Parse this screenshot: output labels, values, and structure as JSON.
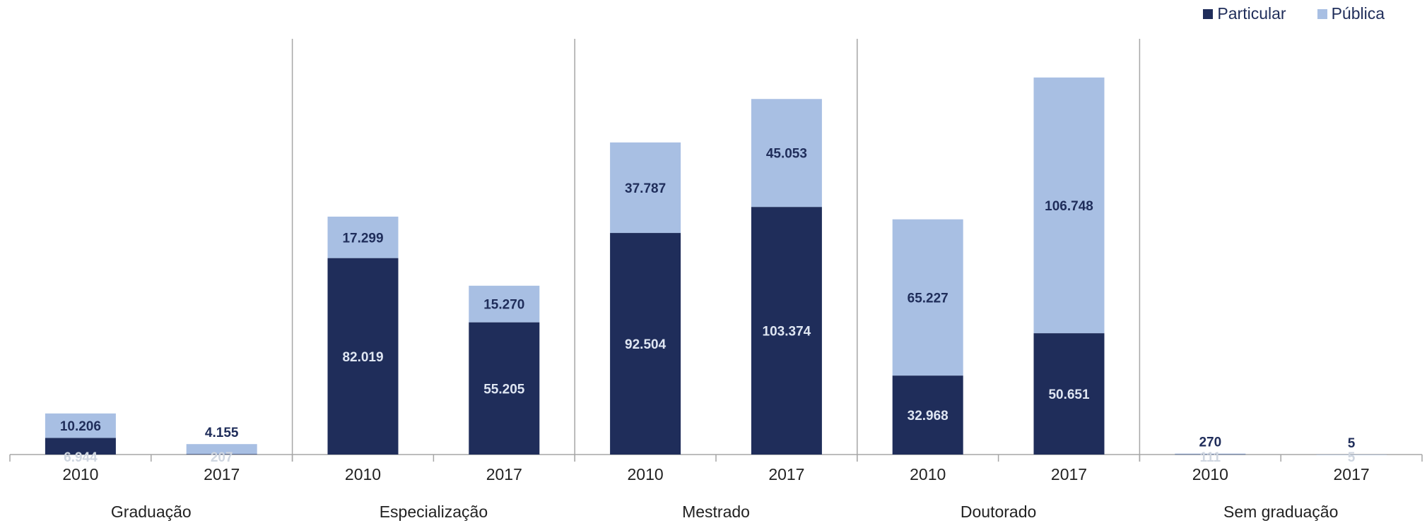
{
  "chart_data": {
    "type": "bar",
    "stacked": true,
    "legend": {
      "placement": "top-right"
    },
    "groups": [
      "Graduação",
      "Especialização",
      "Mestrado",
      "Doutorado",
      "Sem graduação"
    ],
    "categories": [
      "2010",
      "2017"
    ],
    "series": [
      {
        "name": "Particular",
        "color": "#1f2d5a",
        "values": [
          [
            6944,
            207
          ],
          [
            82019,
            55205
          ],
          [
            92504,
            103374
          ],
          [
            32968,
            50651
          ],
          [
            111,
            5
          ]
        ],
        "labels": [
          [
            "6.944",
            "207"
          ],
          [
            "82.019",
            "55.205"
          ],
          [
            "92.504",
            "103.374"
          ],
          [
            "32.968",
            "50.651"
          ],
          [
            "111",
            "5"
          ]
        ]
      },
      {
        "name": "Pública",
        "color": "#a8bfe3",
        "values": [
          [
            10206,
            4155
          ],
          [
            17299,
            15270
          ],
          [
            37787,
            45053
          ],
          [
            65227,
            106748
          ],
          [
            270,
            5
          ]
        ],
        "labels": [
          [
            "10.206",
            "4.155"
          ],
          [
            "17.299",
            "15.270"
          ],
          [
            "37.787",
            "45.053"
          ],
          [
            "65.227",
            "106.748"
          ],
          [
            "270",
            "5"
          ]
        ]
      }
    ],
    "ylim": [
      0,
      165000
    ],
    "grid": false
  }
}
